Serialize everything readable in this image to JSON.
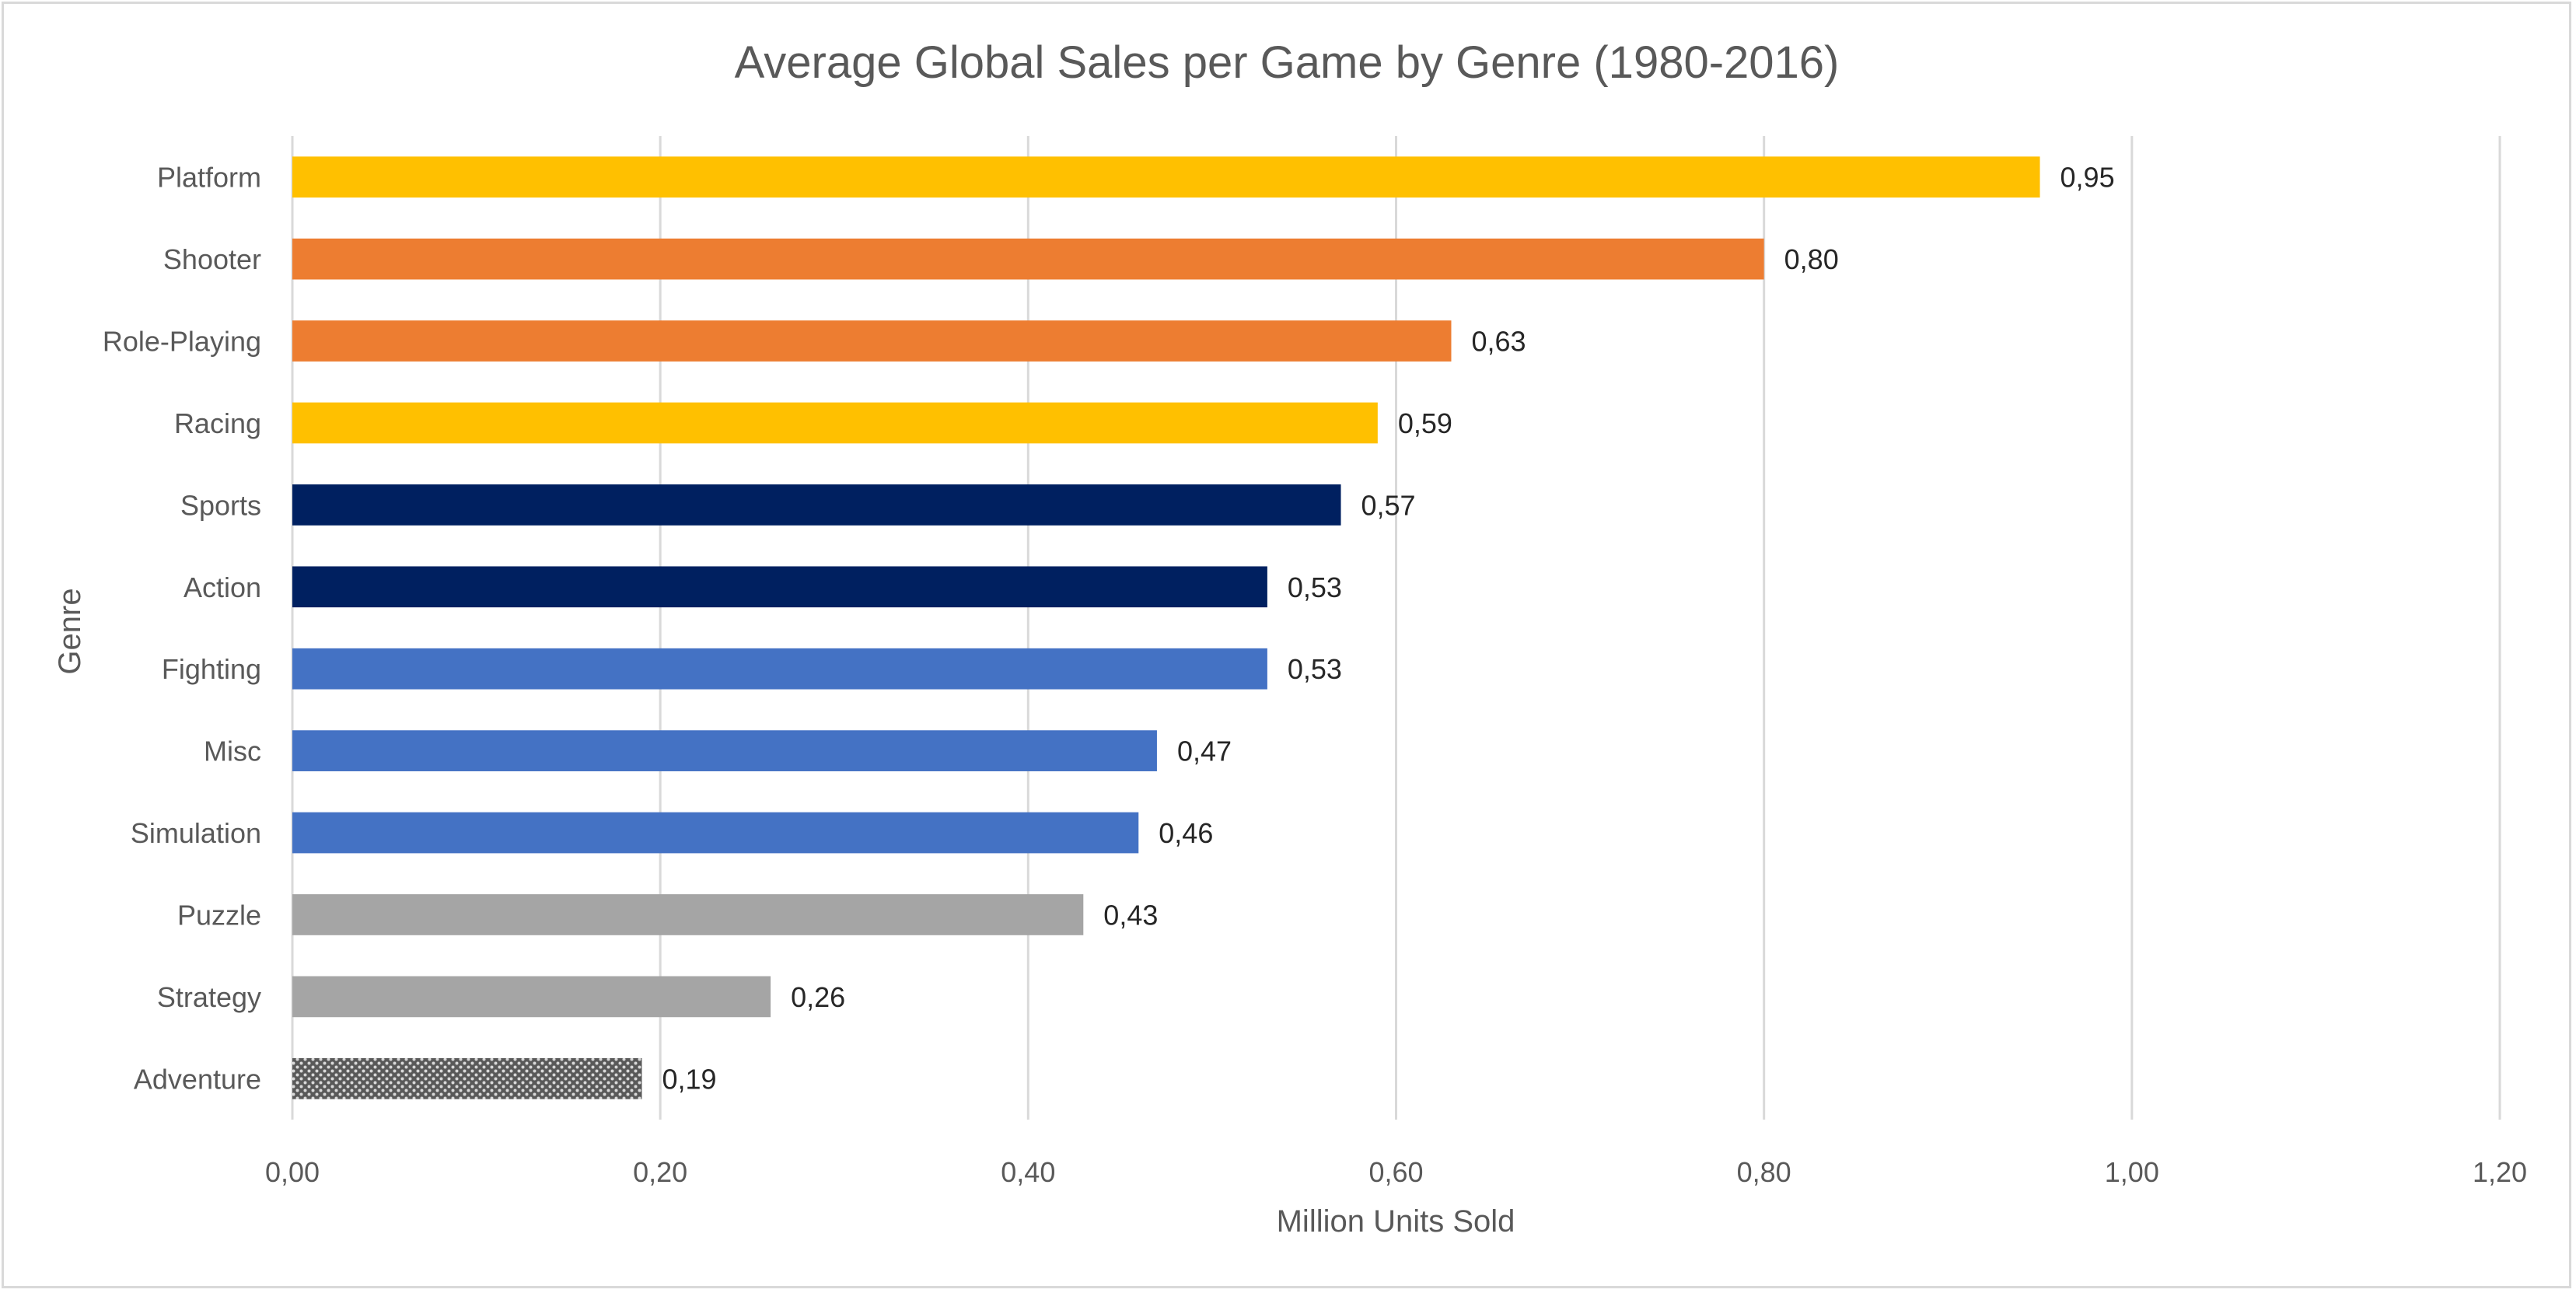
{
  "chart_data": {
    "type": "bar",
    "orientation": "horizontal",
    "title": "Average Global Sales per Game by Genre (1980-2016)",
    "xlabel": "Million Units Sold",
    "ylabel": "Genre",
    "xlim": [
      0,
      1.2
    ],
    "x_ticks": [
      "0,00",
      "0,20",
      "0,40",
      "0,60",
      "0,80",
      "1,00",
      "1,20"
    ],
    "x_tick_values": [
      0,
      0.2,
      0.4,
      0.6,
      0.8,
      1.0,
      1.2
    ],
    "grid": "vertical major gridlines",
    "legend": "none",
    "categories": [
      "Platform",
      "Shooter",
      "Role-Playing",
      "Racing",
      "Sports",
      "Action",
      "Fighting",
      "Misc",
      "Simulation",
      "Puzzle",
      "Strategy",
      "Adventure"
    ],
    "values": [
      0.95,
      0.8,
      0.63,
      0.59,
      0.57,
      0.53,
      0.53,
      0.47,
      0.46,
      0.43,
      0.26,
      0.19
    ],
    "data_labels": [
      "0,95",
      "0,80",
      "0,63",
      "0,59",
      "0,57",
      "0,53",
      "0,53",
      "0,47",
      "0,46",
      "0,43",
      "0,26",
      "0,19"
    ],
    "bar_colors": [
      "#ffc000",
      "#ed7d31",
      "#ed7d31",
      "#ffc000",
      "#002060",
      "#002060",
      "#4472c4",
      "#4472c4",
      "#4472c4",
      "#a5a5a5",
      "#a5a5a5",
      "pattern-dotted-gray"
    ]
  }
}
